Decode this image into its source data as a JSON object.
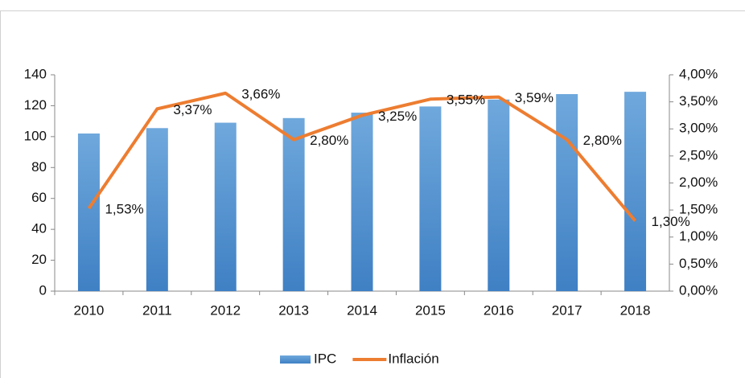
{
  "chart_data": {
    "type": "bar",
    "categories": [
      "2010",
      "2011",
      "2012",
      "2013",
      "2014",
      "2015",
      "2016",
      "2017",
      "2018"
    ],
    "series": [
      {
        "name": "IPC",
        "type": "bar",
        "color": "#5b9bd5",
        "values": [
          102,
          105.5,
          109,
          112,
          115.5,
          119.5,
          124,
          127.5,
          129
        ]
      },
      {
        "name": "Inflación",
        "type": "line",
        "axis": "y2",
        "color": "#ed7d31",
        "values": [
          1.53,
          3.37,
          3.66,
          2.8,
          3.25,
          3.55,
          3.59,
          2.8,
          1.3
        ],
        "value_labels": [
          "1,53%",
          "3,37%",
          "3,66%",
          "2,80%",
          "3,25%",
          "3,55%",
          "3,59%",
          "2,80%",
          "1,30%"
        ]
      }
    ],
    "ylim": [
      0,
      140
    ],
    "yticks": [
      0,
      20,
      40,
      60,
      80,
      100,
      120,
      140
    ],
    "y2lim": [
      0,
      4
    ],
    "y2ticks": [
      {
        "value": 0,
        "label": "0,00%"
      },
      {
        "value": 0.5,
        "label": "0,50%"
      },
      {
        "value": 1,
        "label": "1,00%"
      },
      {
        "value": 1.5,
        "label": "1,50%"
      },
      {
        "value": 2,
        "label": "2,00%"
      },
      {
        "value": 2.5,
        "label": "2,50%"
      },
      {
        "value": 3,
        "label": "3,00%"
      },
      {
        "value": 3.5,
        "label": "3,50%"
      },
      {
        "value": 4,
        "label": "4,00%"
      }
    ],
    "grid": false,
    "legend": "bottom"
  }
}
